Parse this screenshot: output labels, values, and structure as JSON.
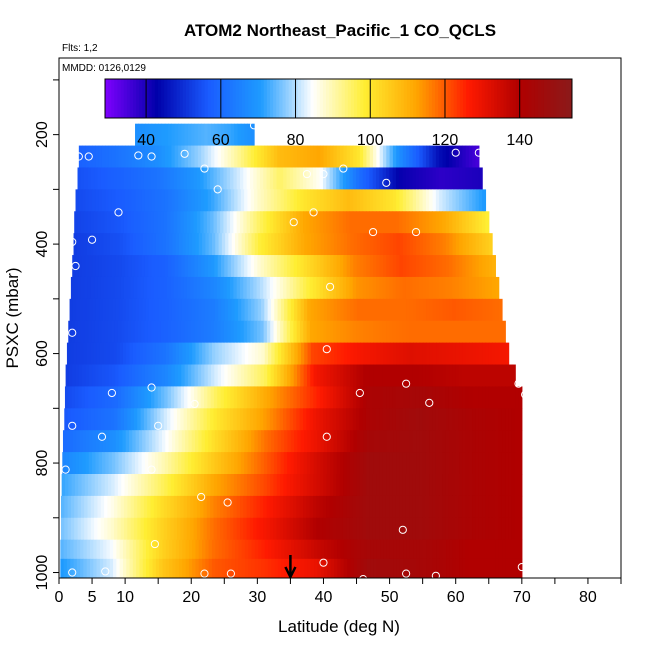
{
  "chart_data": {
    "type": "heatmap",
    "title": "ATOM2 Northeast_Pacific_1 CO_QCLS",
    "annotations": [
      "Flts: 1,2",
      "MMDD: 0126,0129"
    ],
    "xlabel": "Latitude (deg N)",
    "ylabel": "PSXC (mbar)",
    "xlim": [
      0,
      85
    ],
    "ylim": [
      1010,
      60
    ],
    "x_ticks": [
      0,
      5,
      10,
      20,
      30,
      40,
      50,
      60,
      70,
      80
    ],
    "y_ticks": [
      200,
      400,
      600,
      800,
      1000
    ],
    "colorbar": {
      "range": [
        29,
        154
      ],
      "ticks": [
        40,
        60,
        80,
        100,
        120,
        140
      ],
      "colors": [
        "#7f00ff",
        "#0000aa",
        "#1a5cff",
        "#1e9bff",
        "#ffffff",
        "#ffee33",
        "#ffa500",
        "#ff1a00",
        "#b00000",
        "#8b1a1a"
      ]
    },
    "arrow_latitude": 35,
    "rows": [
      {
        "p": 200,
        "x0": 11.5,
        "x1": 29.5,
        "vals": [
          68,
          70,
          72,
          74,
          72,
          68
        ]
      },
      {
        "p": 240,
        "x0": 3,
        "x1": 63.5,
        "vals": [
          58,
          62,
          68,
          78,
          92,
          108,
          112,
          100,
          68,
          45,
          35
        ]
      },
      {
        "p": 280,
        "x0": 2.8,
        "x1": 64,
        "vals": [
          55,
          58,
          62,
          70,
          82,
          95,
          85,
          60,
          42,
          38,
          40
        ]
      },
      {
        "p": 320,
        "x0": 2.5,
        "x1": 64.5,
        "vals": [
          54,
          57,
          62,
          72,
          88,
          100,
          108,
          100,
          82,
          70
        ]
      },
      {
        "p": 360,
        "x0": 2.3,
        "x1": 65,
        "vals": [
          53,
          56,
          62,
          75,
          95,
          112,
          118,
          118,
          112,
          98
        ]
      },
      {
        "p": 400,
        "x0": 2.2,
        "x1": 65.5,
        "vals": [
          52,
          55,
          62,
          75,
          98,
          112,
          118,
          122,
          116,
          104
        ]
      },
      {
        "p": 440,
        "x0": 2.0,
        "x1": 66,
        "vals": [
          52,
          54,
          58,
          70,
          88,
          102,
          116,
          122,
          118,
          110
        ]
      },
      {
        "p": 480,
        "x0": 1.8,
        "x1": 66.5,
        "vals": [
          52,
          54,
          58,
          66,
          80,
          98,
          114,
          118,
          116,
          112
        ]
      },
      {
        "p": 520,
        "x0": 1.6,
        "x1": 67,
        "vals": [
          52,
          54,
          58,
          64,
          78,
          112,
          118,
          118,
          120,
          118
        ]
      },
      {
        "p": 560,
        "x0": 1.4,
        "x1": 67.5,
        "vals": [
          52,
          54,
          58,
          64,
          76,
          112,
          116,
          118,
          118,
          118
        ]
      },
      {
        "p": 600,
        "x0": 1.2,
        "x1": 68,
        "vals": [
          52,
          54,
          62,
          78,
          88,
          122,
          128,
          132,
          130,
          128
        ]
      },
      {
        "p": 640,
        "x0": 1.0,
        "x1": 69,
        "vals": [
          52,
          56,
          66,
          82,
          96,
          128,
          140,
          140,
          138,
          138
        ]
      },
      {
        "p": 680,
        "x0": 0.9,
        "x1": 70,
        "vals": [
          54,
          60,
          76,
          96,
          112,
          126,
          142,
          144,
          140,
          140
        ]
      },
      {
        "p": 720,
        "x0": 0.8,
        "x1": 70,
        "vals": [
          56,
          62,
          82,
          100,
          114,
          130,
          142,
          146,
          142,
          140
        ]
      },
      {
        "p": 760,
        "x0": 0.6,
        "x1": 70,
        "vals": [
          60,
          68,
          84,
          102,
          118,
          130,
          144,
          146,
          142,
          140
        ]
      },
      {
        "p": 800,
        "x0": 0.5,
        "x1": 70,
        "vals": [
          66,
          76,
          90,
          106,
          120,
          134,
          146,
          146,
          142,
          140
        ]
      },
      {
        "p": 840,
        "x0": 0.4,
        "x1": 70,
        "vals": [
          72,
          82,
          96,
          112,
          122,
          134,
          146,
          146,
          142,
          140
        ]
      },
      {
        "p": 880,
        "x0": 0.3,
        "x1": 70,
        "vals": [
          74,
          86,
          102,
          116,
          126,
          138,
          146,
          146,
          142,
          140
        ]
      },
      {
        "p": 920,
        "x0": 0.3,
        "x1": 70,
        "vals": [
          76,
          88,
          104,
          118,
          128,
          140,
          146,
          146,
          142,
          140
        ]
      },
      {
        "p": 960,
        "x0": 0.2,
        "x1": 70,
        "vals": [
          74,
          84,
          104,
          118,
          126,
          136,
          144,
          144,
          140,
          140
        ]
      },
      {
        "p": 990,
        "x0": 0.2,
        "x1": 70,
        "vals": [
          70,
          82,
          106,
          120,
          124,
          130,
          146,
          144,
          140,
          140
        ]
      }
    ],
    "circles": [
      [
        12,
        238
      ],
      [
        19,
        235
      ],
      [
        29.5,
        183
      ],
      [
        3,
        240
      ],
      [
        4.5,
        240
      ],
      [
        14,
        240
      ],
      [
        22,
        262
      ],
      [
        24,
        300
      ],
      [
        37.5,
        272
      ],
      [
        40,
        272
      ],
      [
        43,
        262
      ],
      [
        49.5,
        288
      ],
      [
        60,
        233
      ],
      [
        63.5,
        233
      ],
      [
        9,
        342
      ],
      [
        5,
        392
      ],
      [
        2,
        396
      ],
      [
        2.5,
        440
      ],
      [
        35.5,
        360
      ],
      [
        38.5,
        342
      ],
      [
        47.5,
        378
      ],
      [
        54,
        378
      ],
      [
        41,
        478
      ],
      [
        2,
        562
      ],
      [
        40.5,
        592
      ],
      [
        8,
        672
      ],
      [
        14,
        662
      ],
      [
        20.5,
        692
      ],
      [
        2,
        732
      ],
      [
        15,
        732
      ],
      [
        6.5,
        752
      ],
      [
        40.5,
        752
      ],
      [
        45.5,
        672
      ],
      [
        52.5,
        655
      ],
      [
        56,
        690
      ],
      [
        69.5,
        655
      ],
      [
        70.5,
        675
      ],
      [
        1,
        812
      ],
      [
        14,
        812
      ],
      [
        21.5,
        862
      ],
      [
        25.5,
        872
      ],
      [
        2,
        1000
      ],
      [
        7,
        998
      ],
      [
        14.5,
        948
      ],
      [
        22,
        1002
      ],
      [
        26,
        1002
      ],
      [
        40,
        982
      ],
      [
        46,
        1012
      ],
      [
        52.5,
        1002
      ],
      [
        57,
        1006
      ],
      [
        52,
        922
      ],
      [
        70,
        990
      ]
    ]
  }
}
